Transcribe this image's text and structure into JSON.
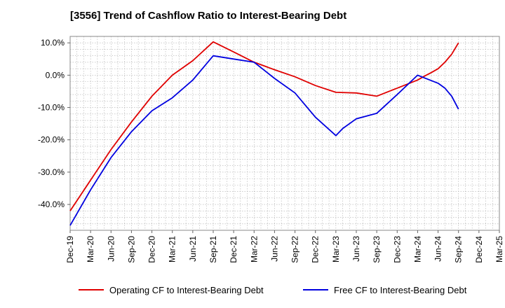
{
  "chart_data": {
    "type": "line",
    "title": "[3556]  Trend of Cashflow Ratio to Interest-Bearing Debt",
    "xlabel": "",
    "ylabel": "",
    "x_ticks": [
      "Dec-19",
      "Mar-20",
      "Jun-20",
      "Sep-20",
      "Dec-20",
      "Mar-21",
      "Jun-21",
      "Sep-21",
      "Dec-21",
      "Mar-22",
      "Jun-22",
      "Sep-22",
      "Dec-22",
      "Mar-23",
      "Jun-23",
      "Sep-23",
      "Dec-23",
      "Mar-24",
      "Jun-24",
      "Sep-24",
      "Dec-24",
      "Mar-25"
    ],
    "y_ticks": [
      "10.0%",
      "0.0%",
      "-10.0%",
      "-20.0%",
      "-30.0%",
      "-40.0%"
    ],
    "ylim": [
      -48,
      12
    ],
    "grid": true,
    "legend_position": "bottom",
    "series": [
      {
        "name": "Operating CF to Interest-Bearing Debt",
        "color": "#e00000",
        "points": [
          [
            "Dec-19",
            -42.0
          ],
          [
            "Mar-20",
            -32.5
          ],
          [
            "Jun-20",
            -23.0
          ],
          [
            "Sep-20",
            -14.5
          ],
          [
            "Dec-20",
            -6.5
          ],
          [
            "Mar-21",
            0.0
          ],
          [
            "Jun-21",
            4.5
          ],
          [
            "Sep-21",
            10.3
          ],
          [
            "Dec-21",
            7.2
          ],
          [
            "Mar-22",
            4.0
          ],
          [
            "Jun-22",
            1.7
          ],
          [
            "Sep-22",
            -0.5
          ],
          [
            "Dec-22",
            -3.2
          ],
          [
            "Mar-23",
            -5.3
          ],
          [
            "Jun-23",
            -5.5
          ],
          [
            "Sep-23",
            -6.5
          ],
          [
            "Dec-23",
            -4.0
          ],
          [
            "Mar-24",
            -1.5
          ],
          [
            "Apr-24",
            -0.3
          ],
          [
            "May-24",
            0.8
          ],
          [
            "Jun-24",
            2.0
          ],
          [
            "Jul-24",
            4.0
          ],
          [
            "Aug-24",
            6.5
          ],
          [
            "Sep-24",
            10.0
          ]
        ]
      },
      {
        "name": "Free CF to Interest-Bearing Debt",
        "color": "#0000e0",
        "points": [
          [
            "Dec-19",
            -46.5
          ],
          [
            "Mar-20",
            -35.5
          ],
          [
            "Jun-20",
            -25.5
          ],
          [
            "Sep-20",
            -17.5
          ],
          [
            "Dec-20",
            -11.0
          ],
          [
            "Mar-21",
            -7.0
          ],
          [
            "Jun-21",
            -1.5
          ],
          [
            "Sep-21",
            6.0
          ],
          [
            "Dec-21",
            5.0
          ],
          [
            "Mar-22",
            4.0
          ],
          [
            "Jun-22",
            -1.0
          ],
          [
            "Sep-22",
            -5.5
          ],
          [
            "Dec-22",
            -13.0
          ],
          [
            "Mar-23",
            -18.7
          ],
          [
            "Apr-23",
            -16.5
          ],
          [
            "Jun-23",
            -13.5
          ],
          [
            "Sep-23",
            -11.8
          ],
          [
            "Dec-23",
            -6.0
          ],
          [
            "Mar-24",
            0.0
          ],
          [
            "Jun-24",
            -2.5
          ],
          [
            "Jul-24",
            -4.0
          ],
          [
            "Aug-24",
            -6.5
          ],
          [
            "Sep-24",
            -10.5
          ]
        ]
      }
    ]
  }
}
